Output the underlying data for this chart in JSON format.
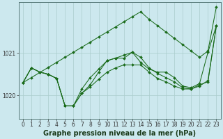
{
  "xlabel": "Graphe pression niveau de la mer (hPa)",
  "yticks": [
    1020,
    1021
  ],
  "xlim": [
    -0.5,
    23.5
  ],
  "ylim": [
    1019.45,
    1022.2
  ],
  "bg_color": "#cce8ee",
  "grid_color": "#aacccc",
  "line_color": "#1a6b1a",
  "line_diagonal": [
    1020.3,
    1020.42,
    1020.54,
    1020.66,
    1020.78,
    1020.9,
    1021.02,
    1021.14,
    1021.26,
    1021.38,
    1021.5,
    1021.62,
    1021.74,
    1021.86,
    1021.98,
    1021.8,
    1021.65,
    1021.5,
    1021.35,
    1021.2,
    1021.05,
    1020.9,
    1021.05,
    1022.1
  ],
  "line1": [
    1020.3,
    1020.65,
    1020.55,
    1020.5,
    1020.4,
    1019.75,
    1019.75,
    1020.05,
    1020.25,
    1020.55,
    1020.82,
    1020.88,
    1020.88,
    1021.02,
    1020.78,
    1020.62,
    1020.55,
    1020.55,
    1020.42,
    1020.22,
    1020.18,
    1020.28,
    1021.02,
    1021.65
  ],
  "line2": [
    1020.3,
    1020.65,
    1020.55,
    1020.5,
    1020.4,
    1019.75,
    1019.75,
    1020.15,
    1020.42,
    1020.62,
    1020.82,
    1020.88,
    1020.95,
    1021.02,
    1020.9,
    1020.65,
    1020.52,
    1020.42,
    1020.32,
    1020.18,
    1020.15,
    1020.22,
    1020.35,
    1021.65
  ],
  "line3": [
    1020.3,
    1020.65,
    1020.55,
    1020.5,
    1020.4,
    1019.75,
    1019.75,
    1020.05,
    1020.2,
    1020.38,
    1020.55,
    1020.65,
    1020.72,
    1020.72,
    1020.72,
    1020.55,
    1020.4,
    1020.32,
    1020.22,
    1020.15,
    1020.15,
    1020.25,
    1020.32,
    1021.65
  ],
  "xtick_labels": [
    "0",
    "1",
    "2",
    "3",
    "4",
    "5",
    "6",
    "7",
    "8",
    "9",
    "10",
    "11",
    "12",
    "13",
    "14",
    "15",
    "16",
    "17",
    "18",
    "19",
    "20",
    "21",
    "22",
    "23"
  ],
  "tick_fontsize": 5.5,
  "label_fontsize": 7,
  "marker_size": 2.0,
  "lw": 0.75
}
